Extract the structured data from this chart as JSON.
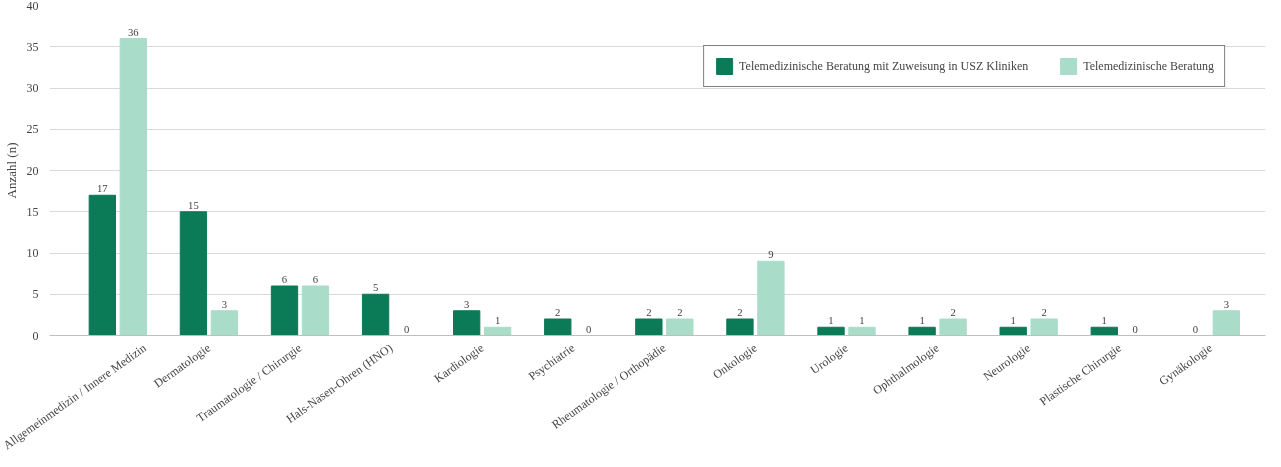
{
  "chart_data": {
    "type": "bar",
    "ylabel": "Anzahl (n)",
    "categories": [
      "Allgemeinmedizin / Innere Medizin",
      "Dermatologie",
      "Traumatologie / Chirurgie",
      "Hals-Nasen-Ohren (HNO)",
      "Kardiologie",
      "Psychiatrie",
      "Rheumatologie / Orthopädie",
      "Onkologie",
      "Urologie",
      "Ophthalmologie",
      "Neurologie",
      "Plastische Chirurgie",
      "Gynäkologie"
    ],
    "series": [
      {
        "name": "Telemedizinische Beratung mit Zuweisung in USZ Kliniken",
        "color": "#0b7a57",
        "values": [
          17,
          15,
          6,
          5,
          3,
          2,
          2,
          2,
          1,
          1,
          1,
          1,
          0
        ]
      },
      {
        "name": "Telemedizinische Beratung",
        "color": "#a9dcc9",
        "values": [
          36,
          3,
          6,
          0,
          1,
          0,
          2,
          9,
          1,
          2,
          2,
          0,
          3
        ]
      }
    ],
    "ylim": [
      0,
      40
    ],
    "yticks": [
      0,
      5,
      10,
      15,
      20,
      25,
      30,
      35,
      40
    ],
    "grid": "y",
    "legend": "top right",
    "data_labels": true
  }
}
